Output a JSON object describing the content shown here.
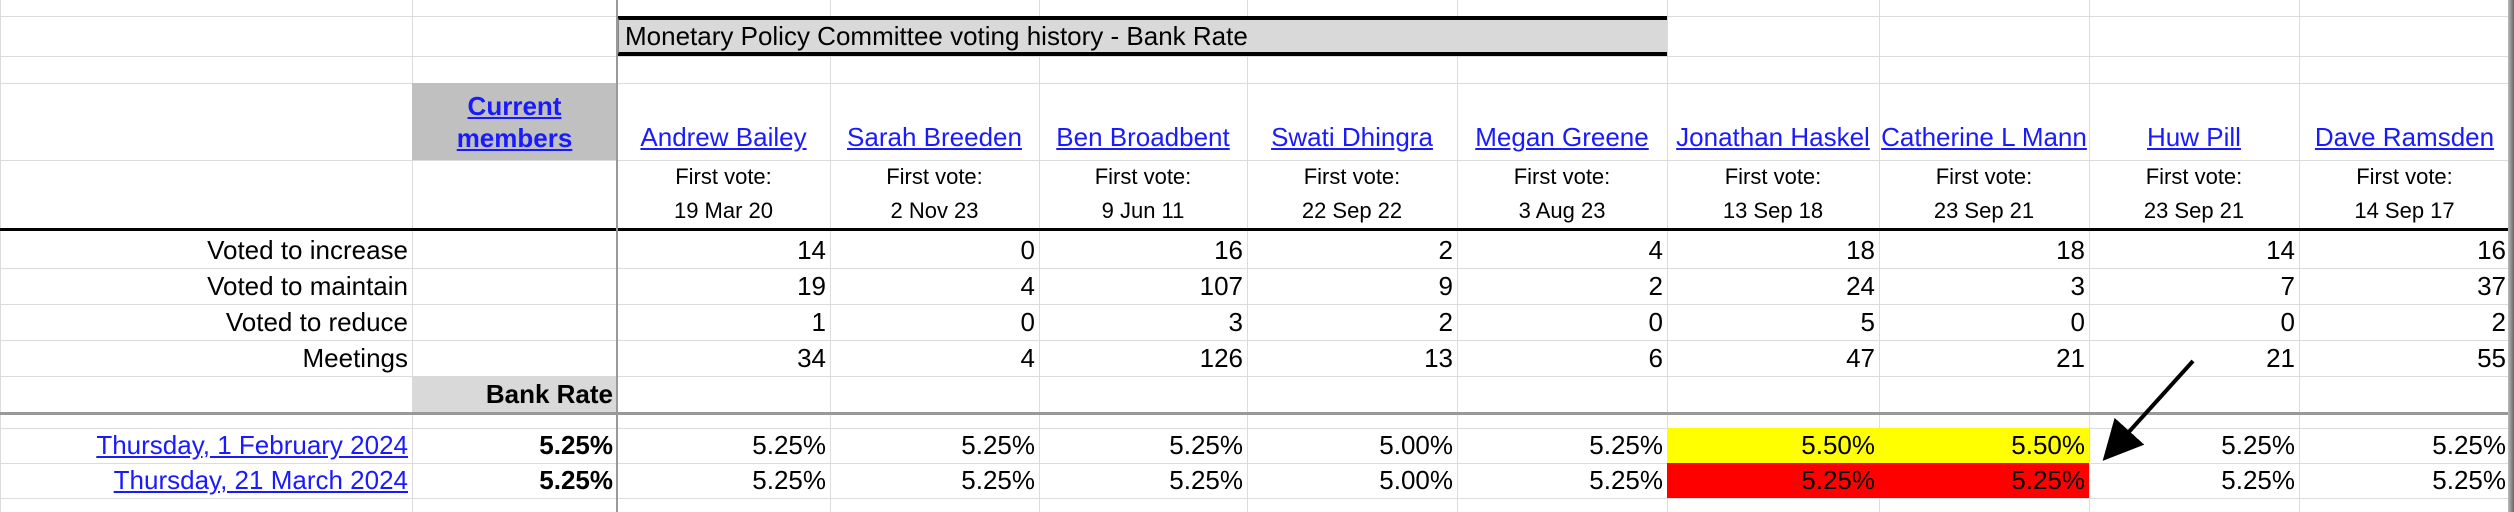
{
  "title": "Monetary Policy Committee voting history - Bank Rate",
  "current_members": "Current members",
  "members": [
    {
      "name": "Andrew Bailey",
      "first_vote_label": "First vote:",
      "first_vote": "19 Mar 20"
    },
    {
      "name": "Sarah Breeden",
      "first_vote_label": "First vote:",
      "first_vote": "2 Nov 23"
    },
    {
      "name": "Ben Broadbent",
      "first_vote_label": "First vote:",
      "first_vote": "9 Jun 11"
    },
    {
      "name": "Swati Dhingra",
      "first_vote_label": "First vote:",
      "first_vote": "22 Sep 22"
    },
    {
      "name": "Megan Greene",
      "first_vote_label": "First vote:",
      "first_vote": "3 Aug 23"
    },
    {
      "name": "Jonathan Haskel",
      "first_vote_label": "First vote:",
      "first_vote": "13 Sep 18"
    },
    {
      "name": "Catherine L Mann",
      "first_vote_label": "First vote:",
      "first_vote": "23 Sep 21"
    },
    {
      "name": "Huw Pill",
      "first_vote_label": "First vote:",
      "first_vote": "23 Sep 21"
    },
    {
      "name": "Dave Ramsden",
      "first_vote_label": "First vote:",
      "first_vote": "14 Sep 17"
    }
  ],
  "stats": [
    {
      "label": "Voted to increase",
      "values": [
        14,
        0,
        16,
        2,
        4,
        18,
        18,
        14,
        16
      ]
    },
    {
      "label": "Voted to maintain",
      "values": [
        19,
        4,
        107,
        9,
        2,
        24,
        3,
        7,
        37
      ]
    },
    {
      "label": "Voted to reduce",
      "values": [
        1,
        0,
        3,
        2,
        0,
        5,
        0,
        0,
        2
      ]
    },
    {
      "label": "Meetings",
      "values": [
        34,
        4,
        126,
        13,
        6,
        47,
        21,
        21,
        55
      ]
    }
  ],
  "bank_rate_label": "Bank Rate",
  "rows": [
    {
      "date": "Thursday, 1 February 2024",
      "bank_rate": "5.25%",
      "votes": [
        "5.25%",
        "5.25%",
        "5.25%",
        "5.00%",
        "5.25%",
        "5.50%",
        "5.50%",
        "5.25%",
        "5.25%"
      ]
    },
    {
      "date": "Thursday, 21 March 2024",
      "bank_rate": "5.25%",
      "votes": [
        "5.25%",
        "5.25%",
        "5.25%",
        "5.00%",
        "5.25%",
        "5.25%",
        "5.25%",
        "5.25%",
        "5.25%"
      ]
    }
  ]
}
